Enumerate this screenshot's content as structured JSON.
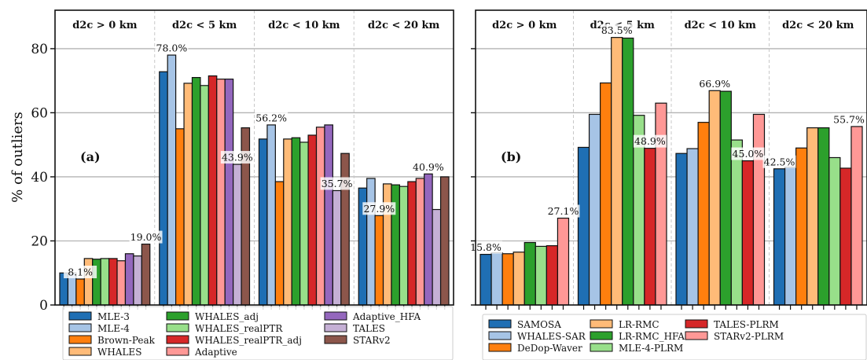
{
  "chart_data": [
    {
      "type": "bar",
      "panel_label": "(a)",
      "ylabel": "% of outliers",
      "ylim": [
        0,
        92
      ],
      "yticks": [
        0,
        20,
        40,
        60,
        80
      ],
      "grid": "horizontal",
      "categories": [
        "d2c > 0 km",
        "d2c < 5 km",
        "d2c < 10 km",
        "d2c < 20 km"
      ],
      "series": [
        {
          "name": "MLE-3",
          "color": "#1f6fb4",
          "values": [
            10.0,
            72.8,
            51.8,
            36.5
          ]
        },
        {
          "name": "MLE-4",
          "color": "#a6c4e6",
          "values": [
            10.0,
            78.0,
            56.2,
            39.5
          ]
        },
        {
          "name": "Brown-Peak",
          "color": "#ff7f0e",
          "values": [
            8.1,
            55.0,
            38.5,
            27.9
          ]
        },
        {
          "name": "WHALES",
          "color": "#ffbb78",
          "values": [
            14.5,
            69.2,
            51.8,
            37.8
          ]
        },
        {
          "name": "WHALES_adj",
          "color": "#2ca02c",
          "values": [
            14.3,
            71.0,
            52.2,
            37.5
          ]
        },
        {
          "name": "WHALES_realPTR",
          "color": "#98df8a",
          "values": [
            14.5,
            68.5,
            50.8,
            37.0
          ]
        },
        {
          "name": "WHALES_realPTR_adj",
          "color": "#d62728",
          "values": [
            14.5,
            71.5,
            53.0,
            38.5
          ]
        },
        {
          "name": "Adaptive",
          "color": "#ff9896",
          "values": [
            13.8,
            70.5,
            55.5,
            39.5
          ]
        },
        {
          "name": "Adaptive_HFA",
          "color": "#9467bd",
          "values": [
            16.0,
            70.5,
            56.2,
            40.9
          ]
        },
        {
          "name": "TALES",
          "color": "#c5b0d5",
          "values": [
            15.3,
            43.9,
            35.7,
            29.8
          ]
        },
        {
          "name": "STARv2",
          "color": "#8c564b",
          "values": [
            19.0,
            55.3,
            47.3,
            40.0
          ]
        }
      ],
      "annotations": [
        {
          "text": "8.1%",
          "category": 0,
          "value": 8.1
        },
        {
          "text": "19.0%",
          "category": 0,
          "value": 19.0
        },
        {
          "text": "78.0%",
          "category": 1,
          "value": 78.0
        },
        {
          "text": "43.9%",
          "category": 1,
          "value": 43.9
        },
        {
          "text": "56.2%",
          "category": 2,
          "value": 56.2
        },
        {
          "text": "35.7%",
          "category": 2,
          "value": 35.7
        },
        {
          "text": "27.9%",
          "category": 3,
          "value": 27.9
        },
        {
          "text": "40.9%",
          "category": 3,
          "value": 40.9
        }
      ],
      "legend_placement": "bottom"
    },
    {
      "type": "bar",
      "panel_label": "(b)",
      "ylim": [
        0,
        92
      ],
      "yticks": [
        0,
        20,
        40,
        60,
        80
      ],
      "grid": "horizontal",
      "categories": [
        "d2c > 0 km",
        "d2c < 5 km",
        "d2c < 10 km",
        "d2c < 20 km"
      ],
      "series": [
        {
          "name": "SAMOSA",
          "color": "#1f6fb4",
          "values": [
            15.8,
            49.2,
            47.3,
            42.5
          ]
        },
        {
          "name": "WHALES-SAR",
          "color": "#a6c4e6",
          "values": [
            16.3,
            59.5,
            48.8,
            43.0
          ]
        },
        {
          "name": "DeDop-Waver",
          "color": "#ff7f0e",
          "values": [
            16.0,
            69.3,
            57.0,
            49.0
          ]
        },
        {
          "name": "LR-RMC",
          "color": "#ffbb78",
          "values": [
            16.5,
            83.5,
            66.9,
            55.3
          ]
        },
        {
          "name": "LR-RMC_HFA",
          "color": "#2ca02c",
          "values": [
            19.5,
            83.3,
            66.7,
            55.3
          ]
        },
        {
          "name": "MLE-4-PLRM",
          "color": "#98df8a",
          "values": [
            18.3,
            59.2,
            51.5,
            46.0
          ]
        },
        {
          "name": "TALES-PLRM",
          "color": "#d62728",
          "values": [
            18.5,
            48.9,
            45.0,
            42.7
          ]
        },
        {
          "name": "STARv2-PLRM",
          "color": "#ff9896",
          "values": [
            27.1,
            63.0,
            59.5,
            55.7
          ]
        }
      ],
      "annotations": [
        {
          "text": "15.8%",
          "category": 0,
          "value": 15.8
        },
        {
          "text": "27.1%",
          "category": 0,
          "value": 27.1
        },
        {
          "text": "83.5%",
          "category": 1,
          "value": 83.5
        },
        {
          "text": "48.9%",
          "category": 1,
          "value": 48.9
        },
        {
          "text": "66.9%",
          "category": 2,
          "value": 66.9
        },
        {
          "text": "45.0%",
          "category": 2,
          "value": 45.0
        },
        {
          "text": "42.5%",
          "category": 3,
          "value": 42.5
        },
        {
          "text": "55.7%",
          "category": 3,
          "value": 55.7
        }
      ],
      "legend_placement": "bottom"
    }
  ]
}
